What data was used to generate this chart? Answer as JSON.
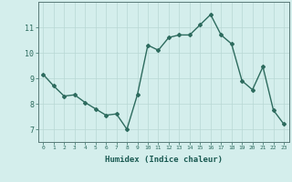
{
  "xlabel": "Humidex (Indice chaleur)",
  "x_values": [
    0,
    1,
    2,
    3,
    4,
    5,
    6,
    7,
    8,
    9,
    10,
    11,
    12,
    13,
    14,
    15,
    16,
    17,
    18,
    19,
    20,
    21,
    22,
    23
  ],
  "y_values": [
    9.15,
    8.7,
    8.3,
    8.35,
    8.05,
    7.8,
    7.55,
    7.6,
    7.0,
    8.35,
    10.3,
    10.1,
    10.6,
    10.7,
    10.7,
    11.1,
    11.5,
    10.7,
    10.35,
    8.9,
    8.55,
    9.45,
    7.75,
    7.2
  ],
  "line_color": "#2d6b5e",
  "marker": "D",
  "marker_size": 2,
  "background_color": "#d4eeec",
  "grid_color": "#b8d8d5",
  "axis_color": "#5a7a78",
  "tick_label_color": "#2d6b5e",
  "label_color": "#1a5a52",
  "ylim": [
    6.5,
    12.0
  ],
  "yticks": [
    7,
    8,
    9,
    10,
    11
  ],
  "xticks": [
    0,
    1,
    2,
    3,
    4,
    5,
    6,
    7,
    8,
    9,
    10,
    11,
    12,
    13,
    14,
    15,
    16,
    17,
    18,
    19,
    20,
    21,
    22,
    23
  ],
  "line_width": 1.0
}
